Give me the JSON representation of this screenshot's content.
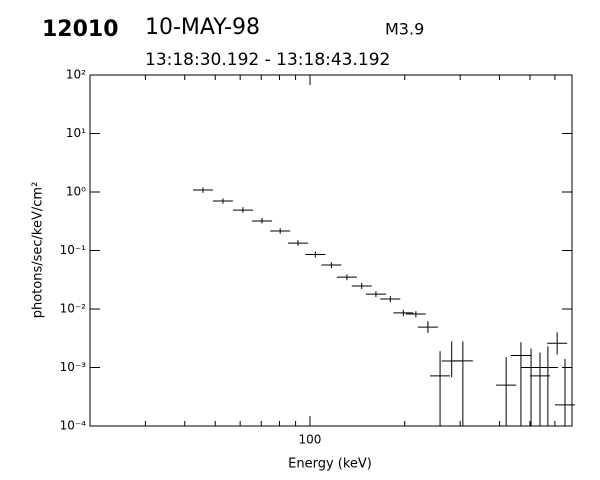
{
  "chart_data": {
    "type": "scatter",
    "header": {
      "id": "12010",
      "date": "10-MAY-98",
      "class": "M3.9",
      "time_range": "13:18:30.192 - 13:18:43.192"
    },
    "xlabel": "Energy (keV)",
    "ylabel": "photons/sec/keV/cm²",
    "xlog": true,
    "ylog": true,
    "color": "#000000",
    "xlim": [
      20,
      680
    ],
    "ylim": [
      0.0001,
      100
    ],
    "xticks": [
      100
    ],
    "xminor": [
      30,
      40,
      50,
      60,
      70,
      80,
      90,
      200,
      300,
      400,
      500,
      600
    ],
    "yticks": [
      {
        "value": 0.0001,
        "label": "10⁻⁴"
      },
      {
        "value": 0.001,
        "label": "10⁻³"
      },
      {
        "value": 0.01,
        "label": "10⁻²"
      },
      {
        "value": 0.1,
        "label": "10⁻¹"
      },
      {
        "value": 1,
        "label": "10⁰"
      },
      {
        "value": 10,
        "label": "10¹"
      },
      {
        "value": 100,
        "label": "10²"
      }
    ],
    "x": [
      45.7,
      52.9,
      61.2,
      70.4,
      80.4,
      91.6,
      104,
      117,
      131,
      146,
      162,
      180,
      198,
      217,
      237,
      259,
      282,
      306,
      420,
      468,
      504,
      538,
      570,
      610,
      646
    ],
    "xlo": [
      42.5,
      49.2,
      56.9,
      65.4,
      74.7,
      85.1,
      96.7,
      108.7,
      121.7,
      135.7,
      150.6,
      167.3,
      184,
      201.7,
      220.3,
      240.7,
      262.1,
      284.4,
      390.3,
      434.9,
      468.4,
      500,
      529.7,
      566.9,
      600.4
    ],
    "xhi": [
      49.2,
      56.9,
      65.9,
      75.8,
      86.5,
      98.6,
      111.9,
      125.9,
      141,
      157.1,
      174.3,
      193.7,
      213,
      233.5,
      255,
      278.7,
      303.4,
      329.3,
      451.9,
      503.6,
      542.3,
      578.9,
      613.3,
      656.4,
      695.1
    ],
    "y": [
      1.08,
      0.7,
      0.49,
      0.32,
      0.215,
      0.134,
      0.0855,
      0.0565,
      0.035,
      0.0247,
      0.018,
      0.0148,
      0.0086,
      0.0082,
      0.0049,
      0.00072,
      0.00129,
      0.0013,
      0.0005,
      0.0016,
      0.001,
      0.00072,
      0.001,
      0.0026,
      0.00023
    ],
    "ylo": [
      0.97,
      0.63,
      0.44,
      0.29,
      0.193,
      0.12,
      0.076,
      0.05,
      0.031,
      0.022,
      0.016,
      0.013,
      0.0076,
      0.0072,
      0.0039,
      0.0001,
      0.00068,
      0.0001,
      0.0001,
      0.0001,
      0.0001,
      0.0001,
      0.0001,
      0.00167,
      0.0001
    ],
    "yhi": [
      1.2,
      0.78,
      0.55,
      0.36,
      0.24,
      0.15,
      0.096,
      0.063,
      0.039,
      0.028,
      0.02,
      0.0166,
      0.0097,
      0.0092,
      0.0062,
      0.0019,
      0.0028,
      0.0028,
      0.0015,
      0.0027,
      0.0021,
      0.0018,
      0.0023,
      0.004,
      0.0014
    ]
  }
}
